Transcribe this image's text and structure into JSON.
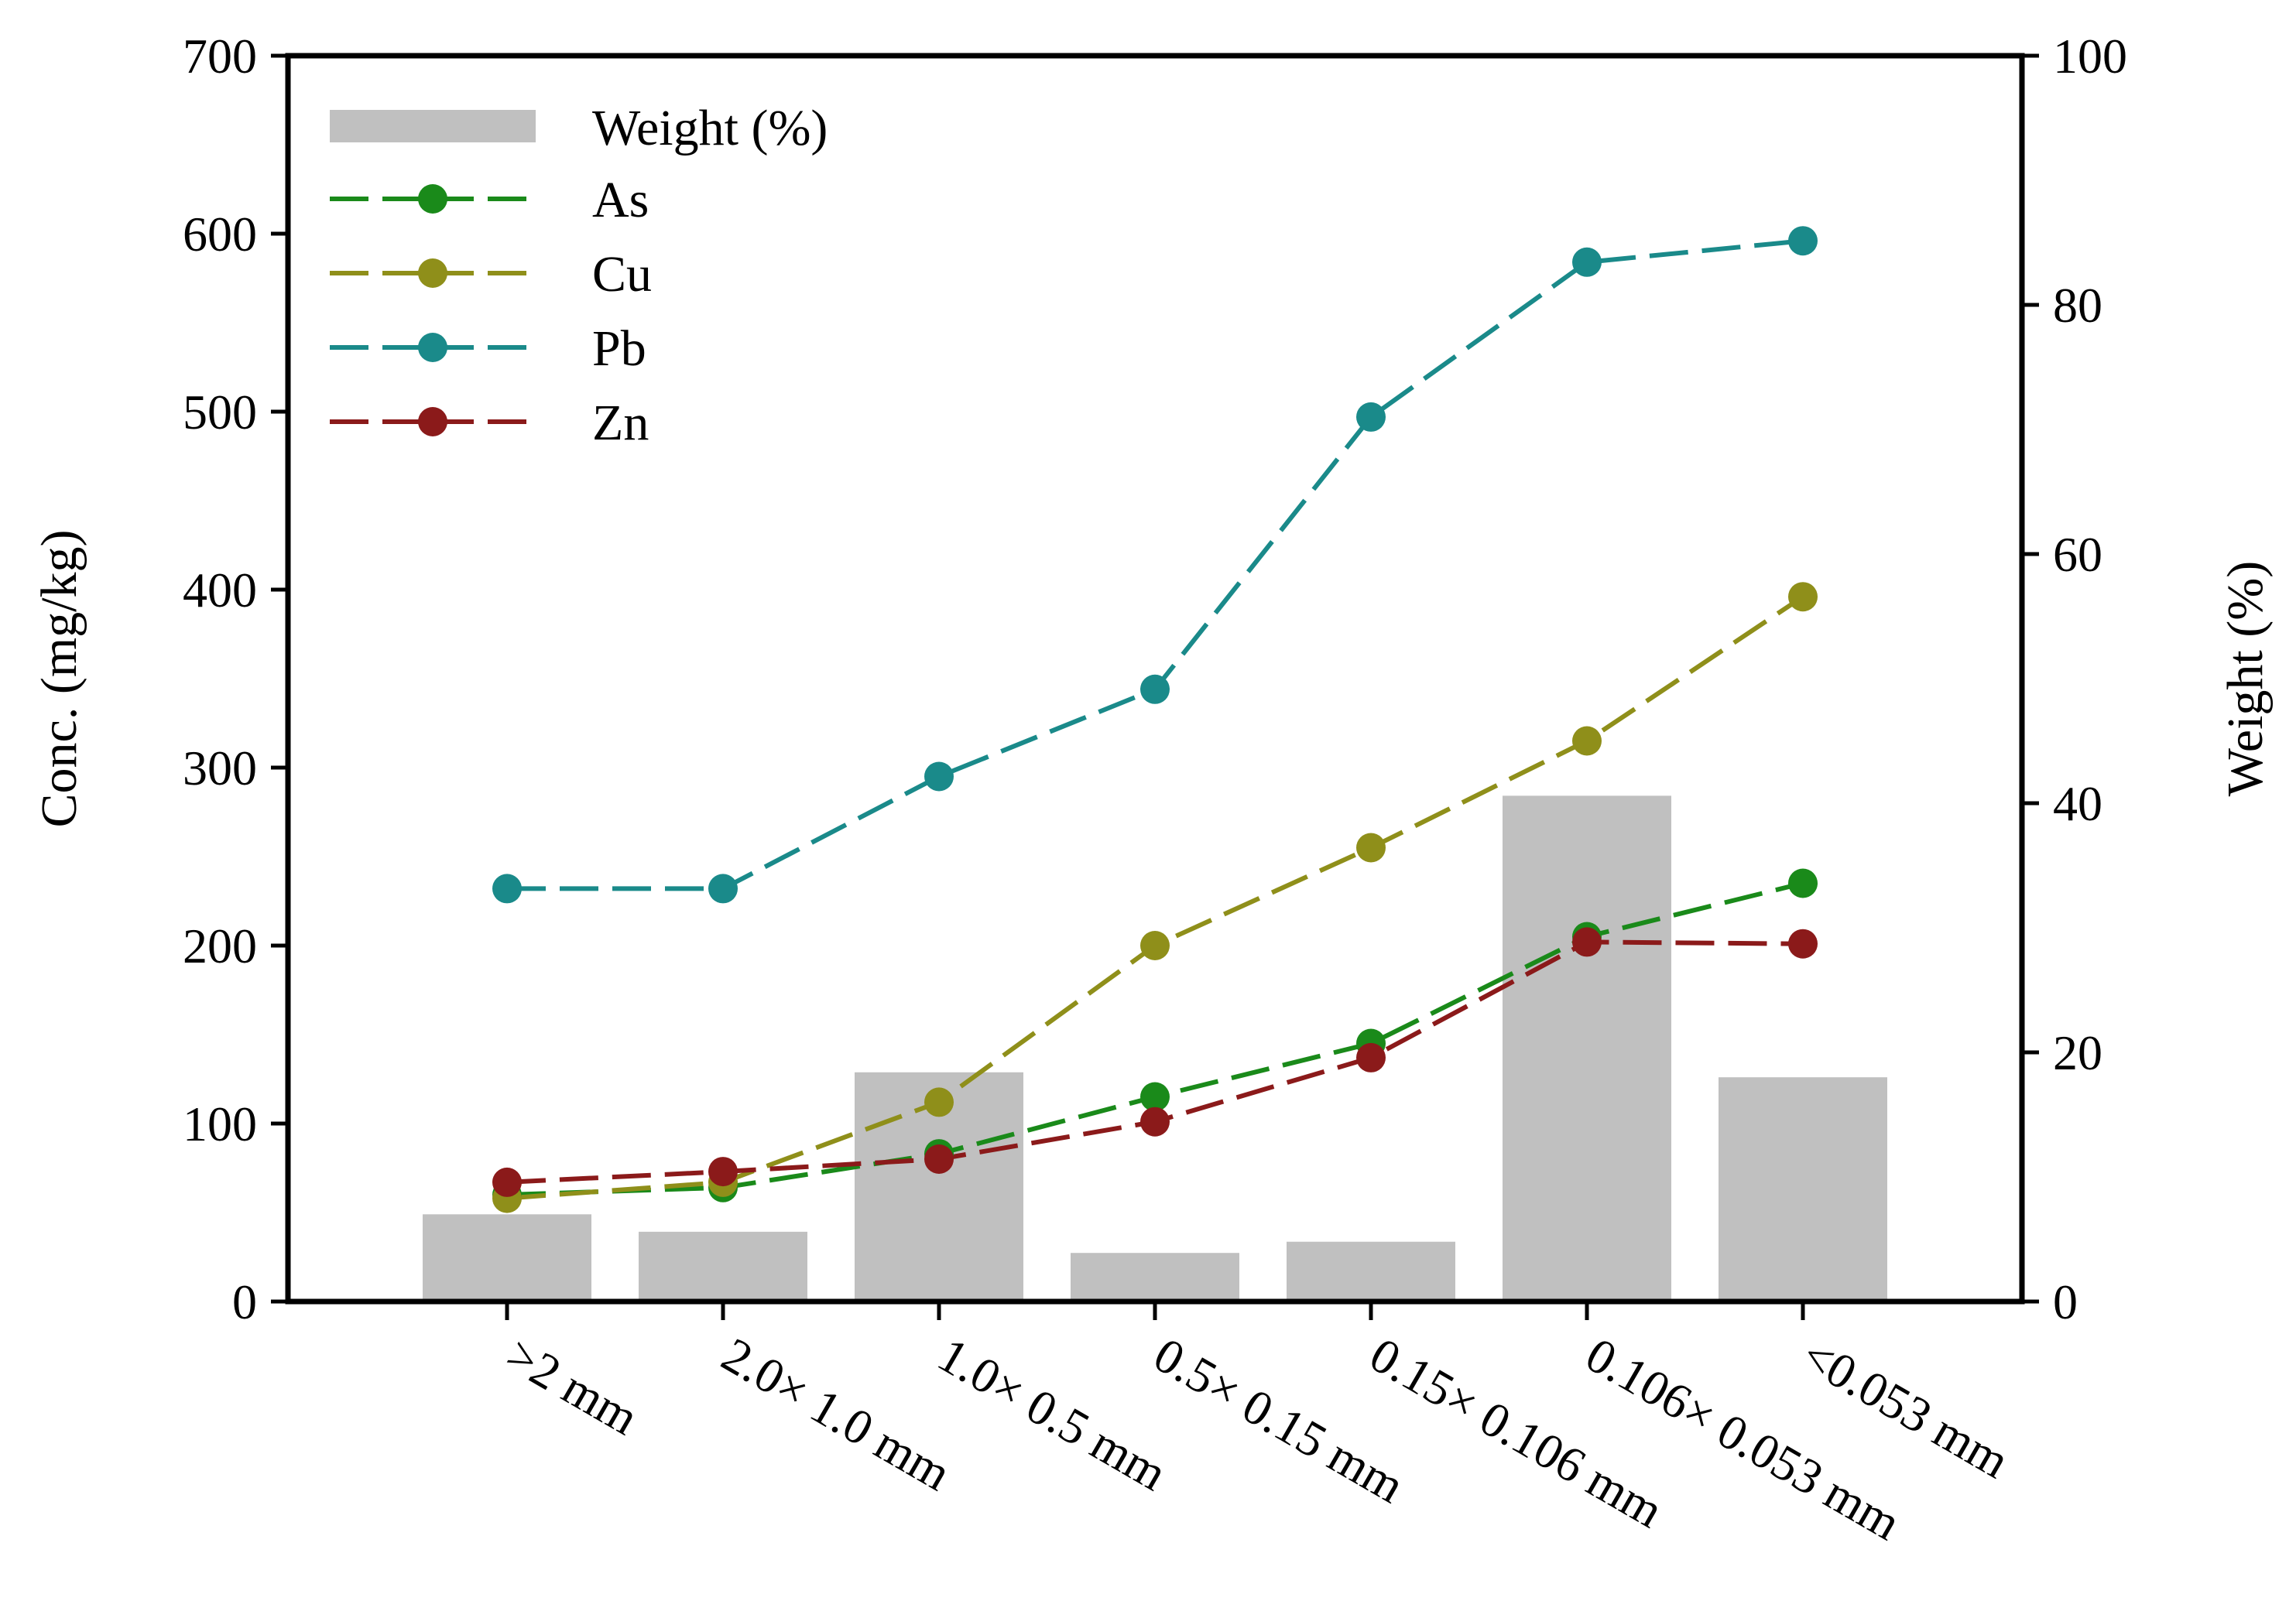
{
  "chart_data": {
    "type": "bar+line",
    "categories": [
      ">2 mm",
      "2.0× 1.0 mm",
      "1.0× 0.5 mm",
      "0.5× 0.15 mm",
      "0.15× 0.106 mm",
      "0.106× 0.053 mm",
      "<0.053 mm"
    ],
    "bars": {
      "name": "Weight (%)",
      "axis": "right",
      "values": [
        7.0,
        5.6,
        18.4,
        3.9,
        4.8,
        40.6,
        18.0
      ],
      "color": "#c0c0c0"
    },
    "series": [
      {
        "name": "As",
        "axis": "left",
        "values": [
          60,
          64,
          83,
          115,
          145,
          205,
          235
        ],
        "color": "#1a8a1a"
      },
      {
        "name": "Cu",
        "axis": "left",
        "values": [
          58,
          67,
          112,
          200,
          255,
          315,
          396
        ],
        "color": "#8f8f1a"
      },
      {
        "name": "Pb",
        "axis": "left",
        "values": [
          232,
          232,
          295,
          344,
          497,
          584,
          596
        ],
        "color": "#1a8a8a"
      },
      {
        "name": "Zn",
        "axis": "left",
        "values": [
          67,
          73,
          80,
          101,
          137,
          202,
          201
        ],
        "color": "#8b1a1a"
      }
    ],
    "left_axis": {
      "label": "Conc. (mg/kg)",
      "range": [
        0,
        700
      ],
      "ticks": [
        "0",
        "100",
        "200",
        "300",
        "400",
        "500",
        "600",
        "700"
      ]
    },
    "right_axis": {
      "label": "Weight (%)",
      "range": [
        0,
        100
      ],
      "ticks": [
        "0",
        "20",
        "40",
        "60",
        "80",
        "100"
      ]
    },
    "legend": {
      "position": "top-left",
      "entries": [
        "Weight (%)",
        "As",
        "Cu",
        "Pb",
        "Zn"
      ]
    },
    "grid": false
  }
}
